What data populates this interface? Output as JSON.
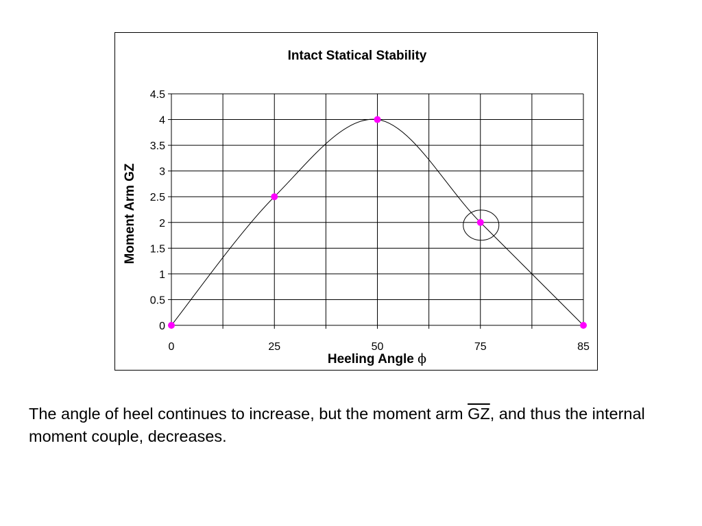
{
  "chart_data": {
    "type": "line",
    "title": "Intact Statical Stability",
    "xlabel": "Heeling Angle",
    "xlabel_symbol": "ϕ",
    "ylabel": "Moment Arm GZ",
    "x": [
      0,
      25,
      50,
      75,
      85
    ],
    "x_tick_labels": [
      "0",
      "25",
      "50",
      "75",
      "85"
    ],
    "y_ticks": [
      0,
      0.5,
      1,
      1.5,
      2,
      2.5,
      3,
      3.5,
      4,
      4.5
    ],
    "y_tick_labels": [
      "0",
      "0.5",
      "1",
      "1.5",
      "2",
      "2.5",
      "3",
      "3.5",
      "4",
      "4.5"
    ],
    "ylim": [
      0,
      4.5
    ],
    "grid": true,
    "legend": "none",
    "series": [
      {
        "values": [
          0,
          2.5,
          4,
          2,
          0
        ],
        "color": "#000000",
        "marker_color": "#ff00ff"
      }
    ],
    "highlight": {
      "x": 75,
      "y": 2,
      "shape": "circle"
    }
  },
  "caption": {
    "before": "The angle of heel continues to increase, but the moment arm ",
    "symbol": "GZ",
    "after": ", and thus the internal moment couple, decreases."
  }
}
